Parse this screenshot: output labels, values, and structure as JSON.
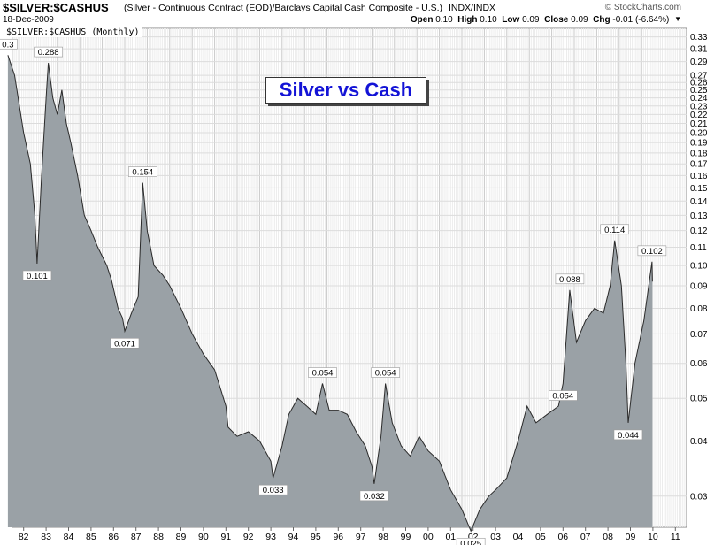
{
  "header": {
    "symbol": "$SILVER:$CASHUS",
    "description": "(Silver - Continuous Contract (EOD)/Barclays Capital Cash Composite - U.S.)",
    "exchange": "INDX/INDX",
    "date": "18-Dec-2009",
    "brand": "© StockCharts.com",
    "open_label": "Open",
    "open": "0.10",
    "high_label": "High",
    "high": "0.10",
    "low_label": "Low",
    "low": "0.09",
    "close_label": "Close",
    "close": "0.09",
    "chg_label": "Chg",
    "chg": "-0.01 (-6.64%)"
  },
  "chart_data": {
    "type": "area",
    "title": "Silver vs Cash",
    "series_label": "$SILVER:$CASHUS (Monthly)",
    "first_value_label": "0.3",
    "y_scale": "log",
    "ylim": [
      0.0255,
      0.345
    ],
    "y_ticks": [
      "0.33",
      "0.31",
      "0.29",
      "0.27",
      "0.26",
      "0.25",
      "0.24",
      "0.23",
      "0.22",
      "0.21",
      "0.20",
      "0.19",
      "0.18",
      "0.17",
      "0.16",
      "0.15",
      "0.14",
      "0.13",
      "0.12",
      "0.11",
      "0.10",
      "0.09",
      "0.08",
      "0.07",
      "0.06",
      "0.05",
      "0.04",
      "0.03"
    ],
    "x_ticks": [
      "82",
      "83",
      "84",
      "85",
      "86",
      "87",
      "88",
      "89",
      "90",
      "91",
      "92",
      "93",
      "94",
      "95",
      "96",
      "97",
      "98",
      "99",
      "00",
      "01",
      "02",
      "03",
      "04",
      "05",
      "06",
      "07",
      "08",
      "09",
      "10",
      "11"
    ],
    "xlim": [
      1981.5,
      2011.5
    ],
    "grid": true,
    "points": [
      [
        1981.3,
        0.3
      ],
      [
        1981.6,
        0.27
      ],
      [
        1982.0,
        0.2
      ],
      [
        1982.3,
        0.17
      ],
      [
        1982.5,
        0.13
      ],
      [
        1982.6,
        0.101
      ],
      [
        1982.8,
        0.16
      ],
      [
        1983.0,
        0.24
      ],
      [
        1983.1,
        0.288
      ],
      [
        1983.3,
        0.24
      ],
      [
        1983.5,
        0.22
      ],
      [
        1983.7,
        0.25
      ],
      [
        1983.9,
        0.21
      ],
      [
        1984.1,
        0.19
      ],
      [
        1984.4,
        0.16
      ],
      [
        1984.7,
        0.13
      ],
      [
        1985.0,
        0.12
      ],
      [
        1985.3,
        0.11
      ],
      [
        1985.7,
        0.1
      ],
      [
        1985.9,
        0.093
      ],
      [
        1986.2,
        0.08
      ],
      [
        1986.4,
        0.076
      ],
      [
        1986.5,
        0.071
      ],
      [
        1986.8,
        0.078
      ],
      [
        1987.1,
        0.085
      ],
      [
        1987.3,
        0.154
      ],
      [
        1987.5,
        0.12
      ],
      [
        1987.8,
        0.1
      ],
      [
        1988.2,
        0.095
      ],
      [
        1988.5,
        0.09
      ],
      [
        1989.0,
        0.08
      ],
      [
        1989.5,
        0.07
      ],
      [
        1990.0,
        0.063
      ],
      [
        1990.5,
        0.058
      ],
      [
        1991.0,
        0.048
      ],
      [
        1991.1,
        0.043
      ],
      [
        1991.5,
        0.041
      ],
      [
        1992.0,
        0.042
      ],
      [
        1992.5,
        0.04
      ],
      [
        1993.0,
        0.036
      ],
      [
        1993.1,
        0.033
      ],
      [
        1993.5,
        0.039
      ],
      [
        1993.8,
        0.046
      ],
      [
        1994.2,
        0.05
      ],
      [
        1994.6,
        0.048
      ],
      [
        1995.0,
        0.046
      ],
      [
        1995.3,
        0.054
      ],
      [
        1995.6,
        0.047
      ],
      [
        1996.0,
        0.047
      ],
      [
        1996.4,
        0.046
      ],
      [
        1996.8,
        0.042
      ],
      [
        1997.2,
        0.039
      ],
      [
        1997.5,
        0.035
      ],
      [
        1997.6,
        0.032
      ],
      [
        1997.9,
        0.041
      ],
      [
        1998.1,
        0.054
      ],
      [
        1998.4,
        0.044
      ],
      [
        1998.8,
        0.039
      ],
      [
        1999.2,
        0.037
      ],
      [
        1999.6,
        0.041
      ],
      [
        2000.0,
        0.038
      ],
      [
        2000.5,
        0.036
      ],
      [
        2001.0,
        0.031
      ],
      [
        2001.5,
        0.028
      ],
      [
        2001.9,
        0.025
      ],
      [
        2002.3,
        0.028
      ],
      [
        2002.7,
        0.03
      ],
      [
        2003.0,
        0.031
      ],
      [
        2003.5,
        0.033
      ],
      [
        2004.0,
        0.04
      ],
      [
        2004.4,
        0.048
      ],
      [
        2004.8,
        0.044
      ],
      [
        2005.3,
        0.046
      ],
      [
        2005.8,
        0.048
      ],
      [
        2006.0,
        0.054
      ],
      [
        2006.3,
        0.088
      ],
      [
        2006.6,
        0.067
      ],
      [
        2007.0,
        0.075
      ],
      [
        2007.4,
        0.08
      ],
      [
        2007.8,
        0.078
      ],
      [
        2008.1,
        0.09
      ],
      [
        2008.3,
        0.114
      ],
      [
        2008.6,
        0.09
      ],
      [
        2008.8,
        0.06
      ],
      [
        2008.9,
        0.044
      ],
      [
        2009.2,
        0.06
      ],
      [
        2009.6,
        0.075
      ],
      [
        2009.96,
        0.102
      ],
      [
        2009.98,
        0.092
      ]
    ],
    "annotations": [
      {
        "x": 1981.3,
        "y": 0.3,
        "text": "0.3",
        "pos": "above"
      },
      {
        "x": 1983.1,
        "y": 0.288,
        "text": "0.288",
        "pos": "above"
      },
      {
        "x": 1982.6,
        "y": 0.101,
        "text": "0.101",
        "pos": "below"
      },
      {
        "x": 1987.3,
        "y": 0.154,
        "text": "0.154",
        "pos": "above"
      },
      {
        "x": 1986.5,
        "y": 0.071,
        "text": "0.071",
        "pos": "below"
      },
      {
        "x": 1993.1,
        "y": 0.033,
        "text": "0.033",
        "pos": "below"
      },
      {
        "x": 1995.3,
        "y": 0.054,
        "text": "0.054",
        "pos": "above"
      },
      {
        "x": 1998.1,
        "y": 0.054,
        "text": "0.054",
        "pos": "above"
      },
      {
        "x": 1997.6,
        "y": 0.032,
        "text": "0.032",
        "pos": "below"
      },
      {
        "x": 2001.9,
        "y": 0.025,
        "text": "0.025",
        "pos": "below"
      },
      {
        "x": 2006.3,
        "y": 0.088,
        "text": "0.088",
        "pos": "above"
      },
      {
        "x": 2006.0,
        "y": 0.054,
        "text": "0.054",
        "pos": "below"
      },
      {
        "x": 2008.3,
        "y": 0.114,
        "text": "0.114",
        "pos": "above"
      },
      {
        "x": 2008.9,
        "y": 0.044,
        "text": "0.044",
        "pos": "below"
      },
      {
        "x": 2009.96,
        "y": 0.102,
        "text": "0.102",
        "pos": "above"
      }
    ],
    "colors": {
      "area": "#9aa1a6",
      "line": "#2a2a2a",
      "banner_text": "#1313d6",
      "grid": "#dcdcdc"
    }
  }
}
